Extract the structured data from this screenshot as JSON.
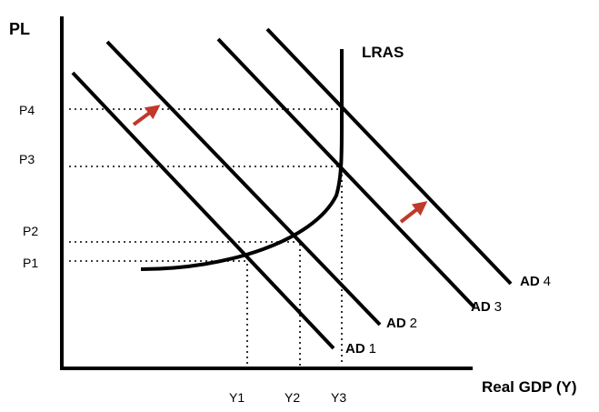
{
  "axes": {
    "y_label": "PL",
    "x_label": "Real GDP (Y)"
  },
  "price_levels": [
    "P4",
    "P3",
    "P2",
    "P1"
  ],
  "output_levels": [
    "Y1",
    "Y2",
    "Y3"
  ],
  "curves": {
    "lras": "LRAS",
    "ad": [
      {
        "prefix": "AD",
        "num": "1"
      },
      {
        "prefix": "AD",
        "num": "2"
      },
      {
        "prefix": "AD",
        "num": "3"
      },
      {
        "prefix": "AD",
        "num": "4"
      }
    ]
  },
  "colors": {
    "shift_arrow": "#c0392b",
    "lines": "#000000"
  }
}
